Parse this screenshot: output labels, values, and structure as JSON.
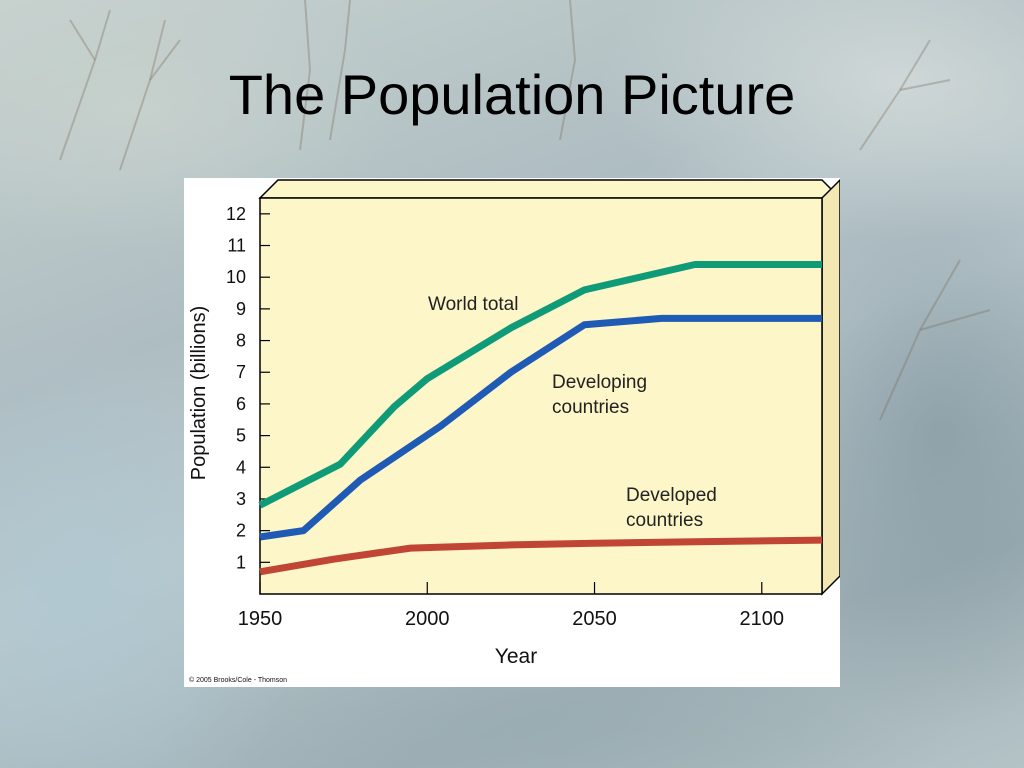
{
  "slide": {
    "title": "The Population Picture",
    "copyright": "© 2005 Brooks/Cole - Thomson"
  },
  "colors": {
    "plot_background": "#fdf6c8",
    "world_total": "#109b78",
    "developing": "#1f5bb4",
    "developed": "#c04535"
  },
  "chart_data": {
    "type": "line",
    "title": "",
    "xlabel": "Year",
    "ylabel": "Population (billions)",
    "xlim": [
      1950,
      2118
    ],
    "ylim": [
      0,
      12.5
    ],
    "xticks": [
      1950,
      2000,
      2050,
      2100
    ],
    "yticks": [
      1,
      2,
      3,
      4,
      5,
      6,
      7,
      8,
      9,
      10,
      11,
      12
    ],
    "series": [
      {
        "name": "World total",
        "color_key": "world_total",
        "x": [
          1950,
          1974,
          1990,
          2000,
          2025,
          2047,
          2080,
          2118
        ],
        "y": [
          2.8,
          4.1,
          5.9,
          6.8,
          8.4,
          9.6,
          10.4,
          10.4
        ]
      },
      {
        "name": "Developing countries",
        "color_key": "developing",
        "x": [
          1950,
          1963,
          1980,
          2004,
          2025,
          2047,
          2070,
          2118
        ],
        "y": [
          1.8,
          2.0,
          3.6,
          5.3,
          7.0,
          8.5,
          8.7,
          8.7
        ]
      },
      {
        "name": "Developed countries",
        "color_key": "developed",
        "x": [
          1950,
          1972,
          1995,
          2025,
          2050,
          2080,
          2118
        ],
        "y": [
          0.7,
          1.1,
          1.45,
          1.55,
          1.6,
          1.65,
          1.7
        ]
      }
    ],
    "annotations": [
      "World total",
      "Developing countries",
      "Developed countries"
    ]
  }
}
